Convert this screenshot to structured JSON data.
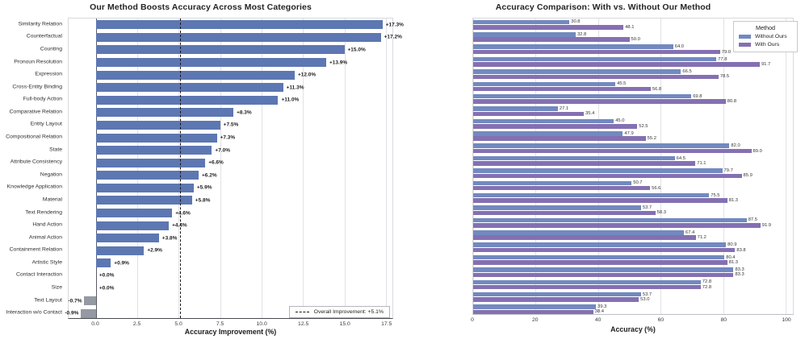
{
  "chart_data": [
    {
      "type": "bar",
      "orientation": "horizontal",
      "title": "Our Method Boosts Accuracy Across Most Categories",
      "xlabel": "Accuracy Improvement (%)",
      "grid": true,
      "xlim": [
        -1.65,
        17.9
      ],
      "xticks": [
        0.0,
        2.5,
        5.0,
        7.5,
        10.0,
        12.5,
        15.0,
        17.5
      ],
      "xtick_labels": [
        "0.0",
        "2.5",
        "5.0",
        "7.5",
        "10.0",
        "12.5",
        "15.0",
        "17.5"
      ],
      "bar_color_positive": "#5d77b2",
      "bar_color_negative": "#9599a4",
      "reference_line": {
        "value": 5.1,
        "label": "Overall Improvement: +5.1%"
      },
      "categories": [
        "Similarity Relation",
        "Counterfactual",
        "Counting",
        "Pronoun Resolution",
        "Expression",
        "Cross-Entity Binding",
        "Full-body Action",
        "Comparative Relation",
        "Entity Layout",
        "Compositional Relation",
        "State",
        "Attribute Consistency",
        "Negation",
        "Knowledge Application",
        "Material",
        "Text Rendering",
        "Hand Action",
        "Animal Action",
        "Containment Relation",
        "Artistic Style",
        "Contact Interaction",
        "Size",
        "Text Layout",
        "Interaction w/o Contact"
      ],
      "values": [
        17.3,
        17.2,
        15.0,
        13.9,
        12.0,
        11.3,
        11.0,
        8.3,
        7.5,
        7.3,
        7.0,
        6.6,
        6.2,
        5.9,
        5.8,
        4.6,
        4.4,
        3.8,
        2.9,
        0.9,
        0.0,
        0.0,
        -0.7,
        -0.9
      ],
      "value_labels": [
        "+17.3%",
        "+17.2%",
        "+15.0%",
        "+13.9%",
        "+12.0%",
        "+11.3%",
        "+11.0%",
        "+8.3%",
        "+7.5%",
        "+7.3%",
        "+7.0%",
        "+6.6%",
        "+6.2%",
        "+5.9%",
        "+5.8%",
        "+4.6%",
        "+4.4%",
        "+3.8%",
        "+2.9%",
        "+0.9%",
        "+0.0%",
        "+0.0%",
        "-0.7%",
        "-0.9%"
      ]
    },
    {
      "type": "bar",
      "orientation": "horizontal",
      "grouped": true,
      "title": "Accuracy Comparison: With vs. Without Our Method",
      "xlabel": "Accuracy (%)",
      "grid": true,
      "legend_title": "Method",
      "legend_position": "upper right",
      "xlim": [
        0,
        102.3
      ],
      "xticks": [
        0,
        20,
        40,
        60,
        80,
        100
      ],
      "xtick_labels": [
        "0",
        "20",
        "40",
        "60",
        "80",
        "100"
      ],
      "categories": [
        "Similarity Relation",
        "Counterfactual",
        "Counting",
        "Pronoun Resolution",
        "Expression",
        "Cross-Entity Binding",
        "Full-body Action",
        "Comparative Relation",
        "Entity Layout",
        "Compositional Relation",
        "State",
        "Attribute Consistency",
        "Negation",
        "Knowledge Application",
        "Material",
        "Text Rendering",
        "Hand Action",
        "Animal Action",
        "Containment Relation",
        "Artistic Style",
        "Contact Interaction",
        "Size",
        "Text Layout",
        "Interaction w/o Contact"
      ],
      "series": [
        {
          "name": "Without Ours",
          "color": "#7289c0",
          "values": [
            30.8,
            32.8,
            64.0,
            77.8,
            66.5,
            45.5,
            69.8,
            27.1,
            45.0,
            47.9,
            82.0,
            64.5,
            79.7,
            50.7,
            75.5,
            53.7,
            87.5,
            67.4,
            80.9,
            80.4,
            83.3,
            72.8,
            53.7,
            39.3
          ],
          "value_labels": [
            "30.8",
            "32.8",
            "64.0",
            "77.8",
            "66.5",
            "45.5",
            "69.8",
            "27.1",
            "45.0",
            "47.9",
            "82.0",
            "64.5",
            "79.7",
            "50.7",
            "75.5",
            "53.7",
            "87.5",
            "67.4",
            "80.9",
            "80.4",
            "83.3",
            "72.8",
            "53.7",
            "39.3"
          ]
        },
        {
          "name": "With Ours",
          "color": "#8470b2",
          "values": [
            48.1,
            50.0,
            79.0,
            91.7,
            78.5,
            56.8,
            80.8,
            35.4,
            52.5,
            55.2,
            89.0,
            71.1,
            85.9,
            56.6,
            81.3,
            58.3,
            91.9,
            71.2,
            83.8,
            81.3,
            83.3,
            72.8,
            53.0,
            38.4
          ],
          "value_labels": [
            "48.1",
            "50.0",
            "79.0",
            "91.7",
            "78.5",
            "56.8",
            "80.8",
            "35.4",
            "52.5",
            "55.2",
            "89.0",
            "71.1",
            "85.9",
            "56.6",
            "81.3",
            "58.3",
            "91.9",
            "71.2",
            "83.8",
            "81.3",
            "83.3",
            "72.8",
            "53.0",
            "38.4"
          ]
        }
      ]
    }
  ]
}
